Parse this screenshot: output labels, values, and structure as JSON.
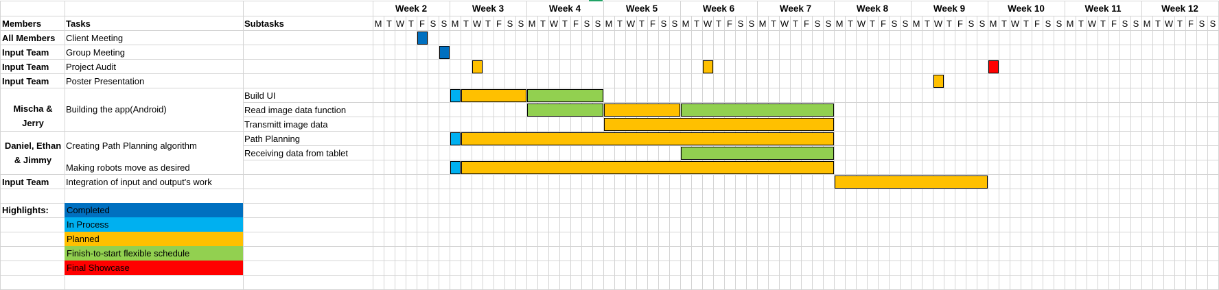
{
  "header": {
    "members_label": "Members",
    "tasks_label": "Tasks",
    "subtasks_label": "Subtasks"
  },
  "weeks": [
    "Week 2",
    "Week 3",
    "Week 4",
    "Week 5",
    "Week 6",
    "Week 7",
    "Week 8",
    "Week 9",
    "Week 10",
    "Week 11",
    "Week 12"
  ],
  "day_letters": [
    "M",
    "T",
    "W",
    "T",
    "F",
    "S",
    "S"
  ],
  "rows": [
    {
      "member": "All Members",
      "task": "Client Meeting",
      "subtask": ""
    },
    {
      "member": "Input Team",
      "task": "Group Meeting",
      "subtask": ""
    },
    {
      "member": "Input Team",
      "task": "Project Audit",
      "subtask": ""
    },
    {
      "member": "Input Team",
      "task": "Poster Presentation",
      "subtask": ""
    },
    {
      "member": "",
      "task": "",
      "subtask": "Build UI"
    },
    {
      "member": "",
      "task": "",
      "subtask": "Read image data function"
    },
    {
      "member": "",
      "task": "",
      "subtask": "Transmitt image data"
    },
    {
      "member": "",
      "task": "",
      "subtask": "Path Planning"
    },
    {
      "member": "",
      "task": "",
      "subtask": "Receiving data from tablet"
    },
    {
      "member": "",
      "task": "Making robots move as desired",
      "subtask": ""
    },
    {
      "member": "Input Team",
      "task": "Integration of input and output's work",
      "subtask": ""
    }
  ],
  "merged": {
    "mischa_jerry": "Mischa & Jerry",
    "daniel_ethan_jimmy": "Daniel, Ethan & Jimmy",
    "building_app": "Building the app(Android)",
    "path_algorithm": "Creating Path Planning algorithm"
  },
  "colors": {
    "completed": "#0070c0",
    "in_process": "#00b0f0",
    "planned": "#ffc000",
    "flexible": "#92d050",
    "final": "#ff0000",
    "grid": "#d4d4d4",
    "tab_marker": "#21a366"
  },
  "legend": {
    "title": "Highlights:",
    "items": [
      {
        "label": "Completed",
        "color": "#0070c0"
      },
      {
        "label": "In Process",
        "color": "#00b0f0"
      },
      {
        "label": "Planned",
        "color": "#ffc000"
      },
      {
        "label": "Finish-to-start flexible schedule",
        "color": "#92d050"
      },
      {
        "label": "Final Showcase",
        "color": "#ff0000"
      }
    ]
  },
  "schedule": [
    {
      "row": 0,
      "start_week": 2,
      "start_day": "F",
      "days": 1,
      "status": "completed"
    },
    {
      "row": 1,
      "start_week": 2,
      "start_day": "S2",
      "days": 1,
      "status": "completed"
    },
    {
      "row": 2,
      "start_week": 3,
      "start_day": "W",
      "days": 1,
      "status": "planned"
    },
    {
      "row": 2,
      "start_week": 6,
      "start_day": "W",
      "days": 1,
      "status": "planned"
    },
    {
      "row": 2,
      "start_week": 10,
      "start_day": "M",
      "days": 1,
      "status": "final"
    },
    {
      "row": 3,
      "start_week": 9,
      "start_day": "W",
      "days": 1,
      "status": "planned"
    },
    {
      "row": 4,
      "start_week": 3,
      "start_day": "M",
      "days": 1,
      "status": "in_process"
    },
    {
      "row": 4,
      "start_week": 3,
      "start_day": "T",
      "days": 6,
      "status": "planned"
    },
    {
      "row": 4,
      "start_week": 4,
      "start_day": "M",
      "days": 7,
      "status": "flexible"
    },
    {
      "row": 5,
      "start_week": 4,
      "start_day": "M",
      "days": 7,
      "status": "flexible"
    },
    {
      "row": 5,
      "start_week": 5,
      "start_day": "M",
      "days": 7,
      "status": "planned"
    },
    {
      "row": 5,
      "start_week": 6,
      "start_day": "M",
      "days": 14,
      "status": "flexible"
    },
    {
      "row": 6,
      "start_week": 5,
      "start_day": "M",
      "days": 21,
      "status": "planned"
    },
    {
      "row": 7,
      "start_week": 3,
      "start_day": "M",
      "days": 1,
      "status": "in_process"
    },
    {
      "row": 7,
      "start_week": 3,
      "start_day": "T",
      "days": 34,
      "status": "planned"
    },
    {
      "row": 8,
      "start_week": 6,
      "start_day": "M",
      "days": 14,
      "status": "flexible"
    },
    {
      "row": 9,
      "start_week": 3,
      "start_day": "M",
      "days": 1,
      "status": "in_process"
    },
    {
      "row": 9,
      "start_week": 3,
      "start_day": "T",
      "days": 34,
      "status": "planned"
    },
    {
      "row": 10,
      "start_week": 8,
      "start_day": "M",
      "days": 14,
      "status": "planned"
    }
  ]
}
